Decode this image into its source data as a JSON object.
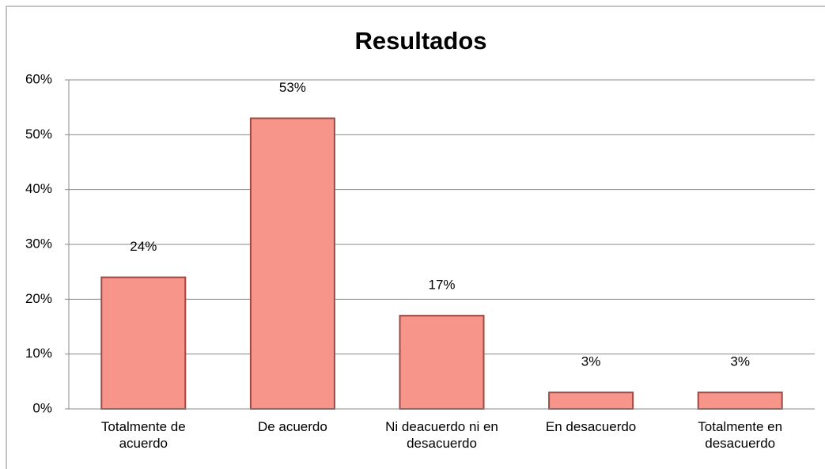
{
  "chart_data": {
    "type": "bar",
    "title": "Resultados",
    "categories": [
      "Totalmente de acuerdo",
      "De acuerdo",
      "Ni deacuerdo ni en desacuerdo",
      "En desacuerdo",
      "Totalmente en desacuerdo"
    ],
    "values": [
      24,
      53,
      17,
      3,
      3
    ],
    "value_labels": [
      "24%",
      "53%",
      "17%",
      "3%",
      "3%"
    ],
    "color": "#f7958b",
    "ylim": [
      0,
      60
    ],
    "yticks": [
      {
        "value": 0,
        "label": "0%"
      },
      {
        "value": 10,
        "label": "10%"
      },
      {
        "value": 20,
        "label": "20%"
      },
      {
        "value": 30,
        "label": "30%"
      },
      {
        "value": 40,
        "label": "40%"
      },
      {
        "value": 50,
        "label": "50%"
      },
      {
        "value": 60,
        "label": "60%"
      }
    ],
    "grid": true
  }
}
